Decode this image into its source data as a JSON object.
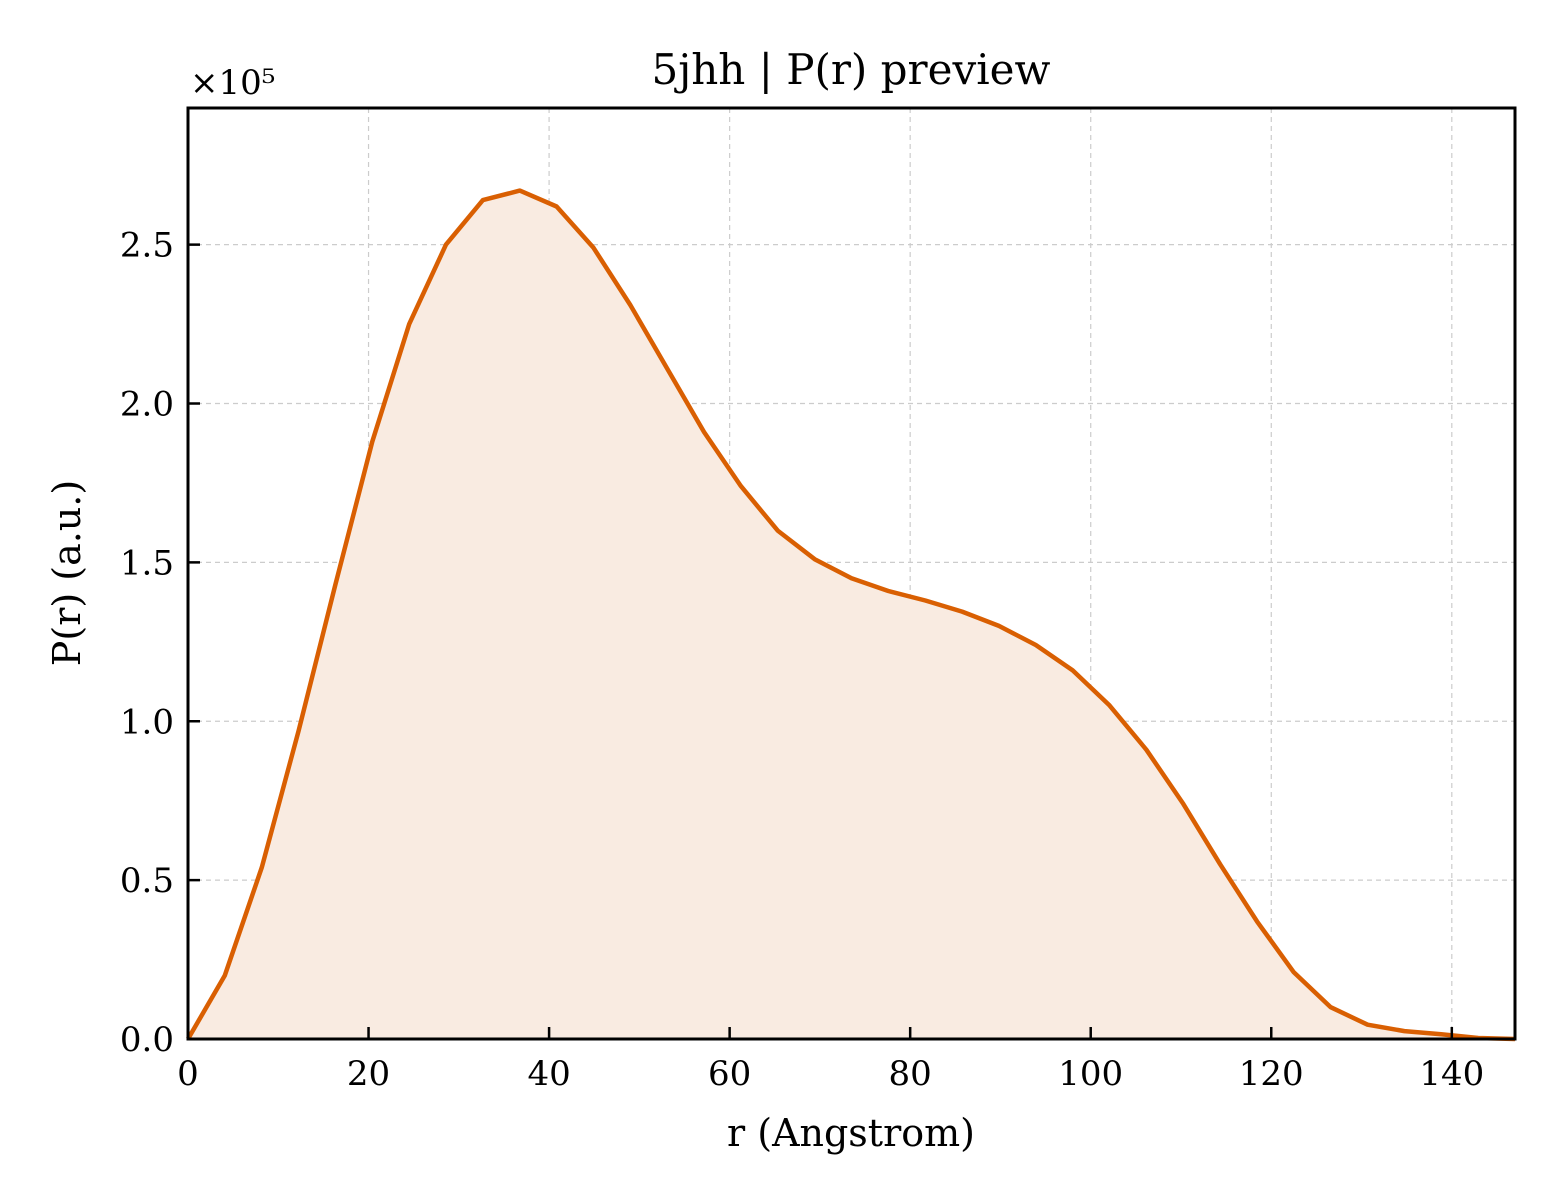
{
  "chart_data": {
    "type": "area",
    "title": "5jhh | P(r) preview",
    "xlabel": "r (Angstrom)",
    "ylabel": "P(r) (a.u.)",
    "y_offset_text": "×10⁵",
    "xlim": [
      0,
      147
    ],
    "ylim": [
      0,
      2.93
    ],
    "xticks": [
      0,
      20,
      40,
      60,
      80,
      100,
      120,
      140
    ],
    "yticks": [
      0.0,
      0.5,
      1.0,
      1.5,
      2.0,
      2.5
    ],
    "ytick_labels": [
      "0.0",
      "0.5",
      "1.0",
      "1.5",
      "2.0",
      "2.5"
    ],
    "grid": true,
    "line_color": "#d95f02",
    "fill_color": "#f9ebe1",
    "series": [
      {
        "x": [
          0,
          4.08,
          8.17,
          12.25,
          16.33,
          20.42,
          24.5,
          28.58,
          32.67,
          36.75,
          40.83,
          44.92,
          49.0,
          53.08,
          57.17,
          61.25,
          65.33,
          69.42,
          73.5,
          77.58,
          81.67,
          85.75,
          89.83,
          93.92,
          98.0,
          102.08,
          106.17,
          110.25,
          114.33,
          118.42,
          122.5,
          126.58,
          130.67,
          134.75,
          138.83,
          142.92,
          147.0
        ],
        "y": [
          0.0,
          0.2,
          0.54,
          0.97,
          1.43,
          1.88,
          2.25,
          2.5,
          2.64,
          2.67,
          2.62,
          2.49,
          2.31,
          2.11,
          1.91,
          1.74,
          1.6,
          1.51,
          1.45,
          1.41,
          1.38,
          1.345,
          1.3,
          1.24,
          1.16,
          1.05,
          0.91,
          0.74,
          0.55,
          0.37,
          0.21,
          0.1,
          0.045,
          0.025,
          0.015,
          0.003,
          0.0
        ]
      }
    ]
  }
}
